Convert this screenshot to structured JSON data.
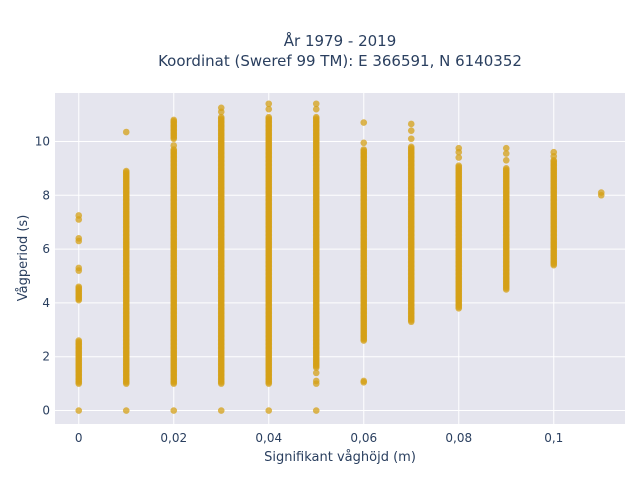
{
  "chart_data": {
    "type": "scatter",
    "title": [
      "År 1979 - 2019",
      "Koordinat (Sweref 99 TM): E 366591, N 6140352"
    ],
    "xlabel": "Signifikant våghöjd (m)",
    "ylabel": "Vågperiod (s)",
    "xlim": [
      -0.005,
      0.115
    ],
    "ylim": [
      -0.5,
      11.8
    ],
    "x_ticks": [
      0,
      0.02,
      0.04,
      0.06,
      0.08,
      0.1
    ],
    "x_tick_labels": [
      "0",
      "0,02",
      "0,04",
      "0,06",
      "0,08",
      "0,1"
    ],
    "y_ticks": [
      0,
      2,
      4,
      6,
      8,
      10
    ],
    "y_tick_labels": [
      "0",
      "2",
      "4",
      "6",
      "8",
      "10"
    ],
    "grid": true,
    "marker_color": "#d4a017",
    "background": "#e5e5ee",
    "columns": [
      {
        "x": 0,
        "ranges": [
          [
            1.0,
            2.6
          ],
          [
            4.1,
            4.6
          ]
        ],
        "points": [
          0,
          5.2,
          5.3,
          6.3,
          6.4,
          7.1,
          7.25
        ]
      },
      {
        "x": 0.01,
        "ranges": [
          [
            1.0,
            8.9
          ]
        ],
        "points": [
          0,
          10.35
        ]
      },
      {
        "x": 0.02,
        "ranges": [
          [
            1.0,
            9.7
          ],
          [
            10.1,
            10.8
          ]
        ],
        "points": [
          0,
          9.85
        ]
      },
      {
        "x": 0.03,
        "ranges": [
          [
            1.0,
            10.9
          ]
        ],
        "points": [
          0,
          11.1,
          11.25
        ]
      },
      {
        "x": 0.04,
        "ranges": [
          [
            1.0,
            10.9
          ]
        ],
        "points": [
          0,
          11.2,
          11.4
        ]
      },
      {
        "x": 0.05,
        "ranges": [
          [
            1.6,
            10.9
          ]
        ],
        "points": [
          0,
          1.0,
          1.1,
          1.4,
          11.2,
          11.4
        ]
      },
      {
        "x": 0.06,
        "ranges": [
          [
            2.6,
            9.7
          ]
        ],
        "points": [
          1.05,
          1.1,
          9.95,
          10.7
        ]
      },
      {
        "x": 0.07,
        "ranges": [
          [
            3.3,
            9.8
          ]
        ],
        "points": [
          10.1,
          10.4,
          10.65
        ]
      },
      {
        "x": 0.08,
        "ranges": [
          [
            3.8,
            9.1
          ]
        ],
        "points": [
          9.4,
          9.6,
          9.75
        ]
      },
      {
        "x": 0.09,
        "ranges": [
          [
            4.5,
            9.0
          ]
        ],
        "points": [
          9.3,
          9.55,
          9.75
        ]
      },
      {
        "x": 0.1,
        "ranges": [
          [
            5.4,
            9.3
          ]
        ],
        "points": [
          9.45,
          9.6
        ]
      },
      {
        "x": 0.11,
        "ranges": [],
        "points": [
          8.0,
          8.1
        ]
      }
    ]
  }
}
